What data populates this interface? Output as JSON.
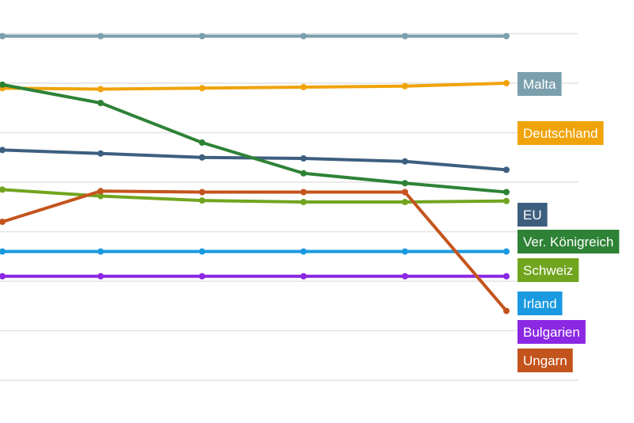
{
  "chart_data": {
    "type": "line",
    "title": "",
    "xlabel": "",
    "ylabel": "",
    "x": [
      0,
      1,
      2,
      3,
      4,
      5
    ],
    "ylim": [
      0,
      8
    ],
    "grid": true,
    "legend": "right, labels at line ends",
    "series": [
      {
        "name": "Malta",
        "color": "#7b9fad",
        "values": [
          6.95,
          6.95,
          6.95,
          6.95,
          6.95,
          6.95
        ]
      },
      {
        "name": "Deutschland",
        "color": "#f0a30a",
        "values": [
          5.9,
          5.88,
          5.9,
          5.92,
          5.94,
          6.0
        ]
      },
      {
        "name": "EU",
        "color": "#3d5f7f",
        "values": [
          4.65,
          4.58,
          4.5,
          4.48,
          4.42,
          4.25
        ]
      },
      {
        "name": "Ver. Königreich",
        "color": "#2e8236",
        "values": [
          5.97,
          5.6,
          4.8,
          4.18,
          3.98,
          3.8
        ]
      },
      {
        "name": "Schweiz",
        "color": "#71a51f",
        "values": [
          3.85,
          3.72,
          3.63,
          3.6,
          3.6,
          3.62
        ]
      },
      {
        "name": "Ungarn",
        "color": "#c4541d",
        "values": [
          3.2,
          3.82,
          3.8,
          3.8,
          3.8,
          1.4
        ]
      },
      {
        "name": "Irland",
        "color": "#1a99e0",
        "values": [
          2.6,
          2.6,
          2.6,
          2.6,
          2.6,
          2.6
        ]
      },
      {
        "name": "Bulgarien",
        "color": "#8a28e3",
        "values": [
          2.1,
          2.1,
          2.1,
          2.1,
          2.1,
          2.1
        ]
      }
    ]
  }
}
